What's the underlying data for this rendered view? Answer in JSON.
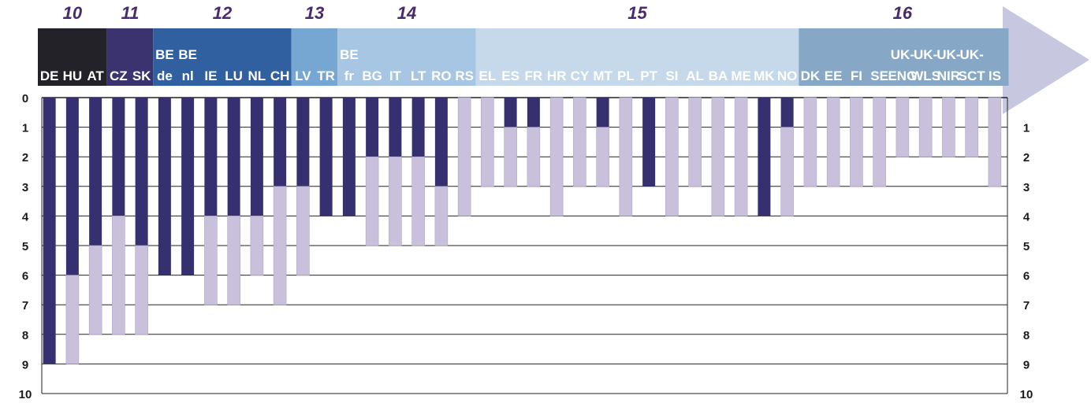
{
  "chart_data": {
    "type": "bar",
    "ylim": [
      0,
      10
    ],
    "y_ticks": [
      "0",
      "1",
      "2",
      "3",
      "4",
      "5",
      "6",
      "7",
      "8",
      "9",
      "10"
    ],
    "colors": {
      "primary": "#363070",
      "secondary": "#c9c0dc",
      "arrow": "#c7c8e0",
      "age_label": "#4a2a6e",
      "gridline": "#222222",
      "axis": "#222222"
    },
    "groups": [
      {
        "age": "10",
        "start": 0,
        "count": 3,
        "color": "#222228"
      },
      {
        "age": "11",
        "start": 3,
        "count": 2,
        "color": "#3a3370"
      },
      {
        "age": "12",
        "start": 5,
        "count": 6,
        "color": "#3060a0"
      },
      {
        "age": "13",
        "start": 11,
        "count": 2,
        "color": "#76a6d2"
      },
      {
        "age": "14",
        "start": 13,
        "count": 6,
        "color": "#a7c6e3"
      },
      {
        "age": "15",
        "start": 19,
        "count": 14,
        "color": "#c6d9ea"
      },
      {
        "age": "16",
        "start": 33,
        "count": 9,
        "color": "#86a8c6"
      }
    ],
    "countries": [
      {
        "label": [
          "DE"
        ],
        "primary": 9,
        "secondary": 0
      },
      {
        "label": [
          "HU"
        ],
        "primary": 6,
        "secondary": 3
      },
      {
        "label": [
          "AT"
        ],
        "primary": 5,
        "secondary": 3
      },
      {
        "label": [
          "CZ"
        ],
        "primary": 4,
        "secondary": 4
      },
      {
        "label": [
          "SK"
        ],
        "primary": 5,
        "secondary": 3
      },
      {
        "label": [
          "BE",
          "de"
        ],
        "primary": 6,
        "secondary": 0
      },
      {
        "label": [
          "BE",
          "nl"
        ],
        "primary": 6,
        "secondary": 0
      },
      {
        "label": [
          "IE"
        ],
        "primary": 4,
        "secondary": 3
      },
      {
        "label": [
          "LU"
        ],
        "primary": 4,
        "secondary": 3
      },
      {
        "label": [
          "NL"
        ],
        "primary": 4,
        "secondary": 2
      },
      {
        "label": [
          "CH"
        ],
        "primary": 3,
        "secondary": 4
      },
      {
        "label": [
          "LV"
        ],
        "primary": 3,
        "secondary": 3
      },
      {
        "label": [
          "TR"
        ],
        "primary": 4,
        "secondary": 0
      },
      {
        "label": [
          "BE",
          "fr"
        ],
        "primary": 4,
        "secondary": 0
      },
      {
        "label": [
          "BG"
        ],
        "primary": 2,
        "secondary": 3
      },
      {
        "label": [
          "IT"
        ],
        "primary": 2,
        "secondary": 3
      },
      {
        "label": [
          "LT"
        ],
        "primary": 2,
        "secondary": 3
      },
      {
        "label": [
          "RO"
        ],
        "primary": 3,
        "secondary": 2
      },
      {
        "label": [
          "RS"
        ],
        "primary": 0,
        "secondary": 4
      },
      {
        "label": [
          "EL"
        ],
        "primary": 0,
        "secondary": 3
      },
      {
        "label": [
          "ES"
        ],
        "primary": 1,
        "secondary": 2
      },
      {
        "label": [
          "FR"
        ],
        "primary": 1,
        "secondary": 2
      },
      {
        "label": [
          "HR"
        ],
        "primary": 0,
        "secondary": 4
      },
      {
        "label": [
          "CY"
        ],
        "primary": 0,
        "secondary": 3
      },
      {
        "label": [
          "MT"
        ],
        "primary": 1,
        "secondary": 2
      },
      {
        "label": [
          "PL"
        ],
        "primary": 0,
        "secondary": 4
      },
      {
        "label": [
          "PT"
        ],
        "primary": 3,
        "secondary": 0
      },
      {
        "label": [
          "SI"
        ],
        "primary": 0,
        "secondary": 4
      },
      {
        "label": [
          "AL"
        ],
        "primary": 0,
        "secondary": 3
      },
      {
        "label": [
          "BA"
        ],
        "primary": 0,
        "secondary": 4
      },
      {
        "label": [
          "ME"
        ],
        "primary": 0,
        "secondary": 4
      },
      {
        "label": [
          "MK"
        ],
        "primary": 4,
        "secondary": 0
      },
      {
        "label": [
          "NO"
        ],
        "primary": 1,
        "secondary": 3
      },
      {
        "label": [
          "DK"
        ],
        "primary": 0,
        "secondary": 3
      },
      {
        "label": [
          "EE"
        ],
        "primary": 0,
        "secondary": 3
      },
      {
        "label": [
          "FI"
        ],
        "primary": 0,
        "secondary": 3
      },
      {
        "label": [
          "SE"
        ],
        "primary": 0,
        "secondary": 3
      },
      {
        "label": [
          "UK-",
          "ENG"
        ],
        "primary": 0,
        "secondary": 2
      },
      {
        "label": [
          "UK-",
          "WLS"
        ],
        "primary": 0,
        "secondary": 2
      },
      {
        "label": [
          "UK-",
          "NIR"
        ],
        "primary": 0,
        "secondary": 2
      },
      {
        "label": [
          "UK-",
          "SCT"
        ],
        "primary": 0,
        "secondary": 2
      },
      {
        "label": [
          "IS"
        ],
        "primary": 0,
        "secondary": 3
      }
    ]
  }
}
